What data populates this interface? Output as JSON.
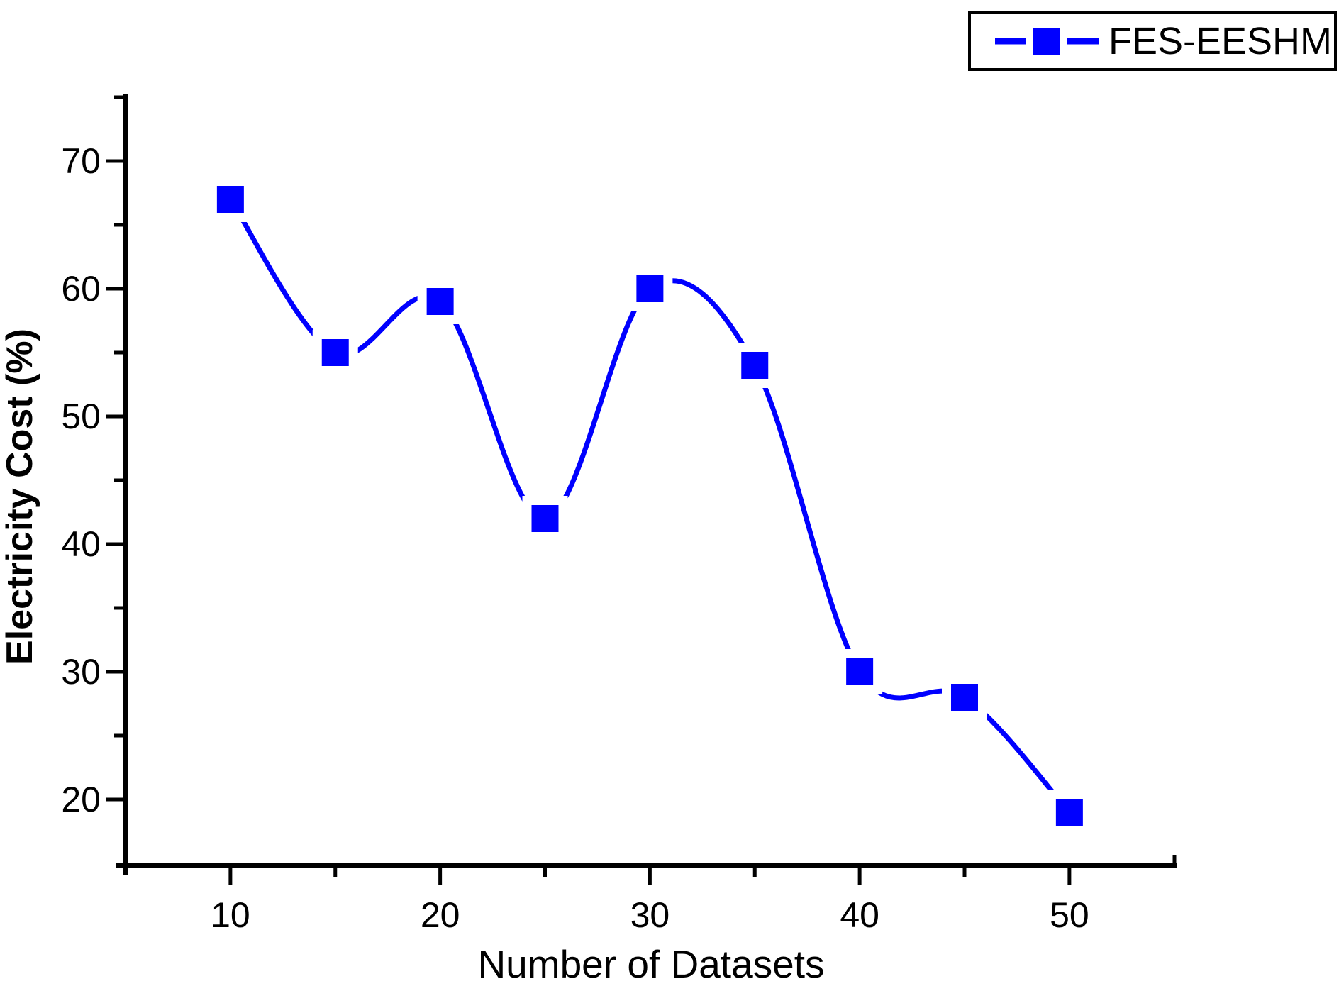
{
  "chart_data": {
    "type": "line",
    "curve": "spline",
    "x": [
      10,
      15,
      20,
      25,
      30,
      35,
      40,
      45,
      50
    ],
    "series": [
      {
        "name": "FES-EESHM",
        "values": [
          67,
          55,
          59,
          42,
          60,
          54,
          30,
          28,
          19
        ]
      }
    ],
    "xlabel": "Number of Datasets",
    "ylabel": "Electricity Cost (%)",
    "xlim": [
      5,
      55
    ],
    "ylim": [
      15,
      75
    ],
    "x_major_ticks": [
      10,
      20,
      30,
      40,
      50
    ],
    "x_minor_ticks": [
      15,
      25,
      35,
      45
    ],
    "y_major_ticks": [
      20,
      30,
      40,
      50,
      60,
      70
    ],
    "y_minor_ticks": [
      25,
      35,
      45,
      55,
      65,
      75
    ],
    "grid": false,
    "marker": "square",
    "legend_position": "top-right",
    "colors": {
      "line": "#0000FF",
      "marker": "#0000FF",
      "axis": "#000000",
      "text": "#000000",
      "background": "#FFFFFF"
    }
  },
  "legend": {
    "label": "FES-EESHM"
  }
}
